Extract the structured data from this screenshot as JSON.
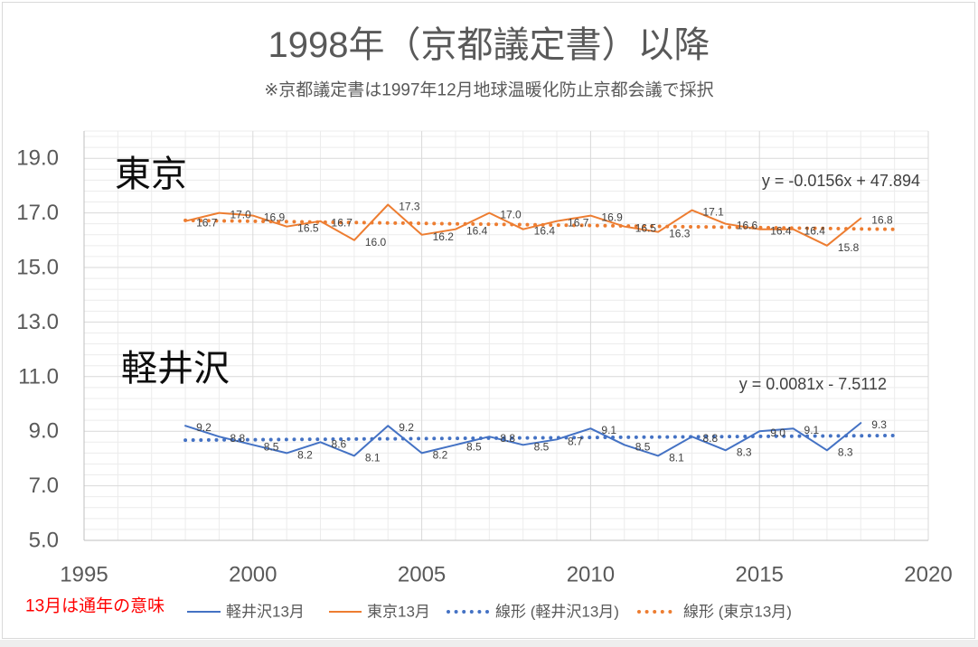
{
  "chart_data": {
    "type": "line",
    "title": "1998年（京都議定書）以降",
    "subtitle": "※京都議定書は1997年12月地球温暖化防止京都会議で採択",
    "xlim": [
      1995,
      2020
    ],
    "ylim": [
      5,
      20
    ],
    "x_tick_labels": [
      "1995",
      "2000",
      "2005",
      "2010",
      "2015",
      "2020"
    ],
    "y_tick_labels": [
      "5.0",
      "7.0",
      "9.0",
      "11.0",
      "13.0",
      "15.0",
      "17.0",
      "19.0"
    ],
    "grid": "major and minor",
    "legend": "bottom",
    "x": [
      1998,
      1999,
      2000,
      2001,
      2002,
      2003,
      2004,
      2005,
      2006,
      2007,
      2008,
      2009,
      2010,
      2011,
      2012,
      2013,
      2014,
      2015,
      2016,
      2017,
      2018
    ],
    "series": [
      {
        "name": "軽井沢13月",
        "color": "#4472C4",
        "values": [
          9.2,
          8.8,
          8.5,
          8.2,
          8.6,
          8.1,
          9.2,
          8.2,
          8.5,
          8.8,
          8.5,
          8.7,
          9.1,
          8.5,
          8.1,
          8.8,
          8.3,
          9.0,
          9.1,
          8.3,
          9.3
        ],
        "data_labels": [
          "9.2",
          "8.8",
          "8.5",
          "8.2",
          "8.6",
          "8.1",
          "9.2",
          "8.2",
          "8.5",
          "8.8",
          "8.5",
          "8.7",
          "9.1",
          "8.5",
          "8.1",
          "8.8",
          "8.3",
          "9.0",
          "9.1",
          "8.3",
          "9.3"
        ]
      },
      {
        "name": "東京13月",
        "color": "#ED7D31",
        "values": [
          16.7,
          17.0,
          16.9,
          16.5,
          16.7,
          16.0,
          17.3,
          16.2,
          16.4,
          17.0,
          16.4,
          16.7,
          16.9,
          16.5,
          16.3,
          17.1,
          16.6,
          16.4,
          16.4,
          15.8,
          16.8
        ],
        "data_labels": [
          "16.7",
          "17.0",
          "16.9",
          "16.5",
          "16.7",
          "16.0",
          "17.3",
          "16.2",
          "16.4",
          "17.0",
          "16.4",
          "16.7",
          "16.9",
          "16.5",
          "16.3",
          "17.1",
          "16.6",
          "16.4",
          "16.4",
          "15.8",
          "16.8"
        ]
      }
    ],
    "trendlines": [
      {
        "name": "線形 (軽井沢13月)",
        "style": "dotted",
        "color": "#4472C4",
        "equation": "y = 0.0081x - 7.5112",
        "x_range": [
          1998,
          2019
        ]
      },
      {
        "name": "線形 (東京13月)",
        "style": "dotted",
        "color": "#ED7D31",
        "equation": "y = -0.0156x + 47.894",
        "x_range": [
          1998,
          2019
        ]
      }
    ],
    "annotations": {
      "tokyo": "東京",
      "karuizawa": "軽井沢"
    },
    "note": "13月は通年の意味",
    "note_color": "#FF0000"
  }
}
